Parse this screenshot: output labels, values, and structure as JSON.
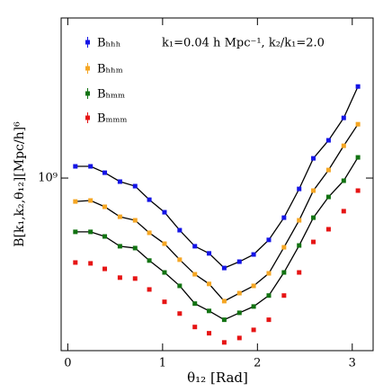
{
  "chart_data": {
    "type": "scatter",
    "log_y": true,
    "xlabel": "θ₁₂ [Rad]",
    "ylabel": "B[k₁,k₂,θ₁₂][Mpc/h]⁶",
    "annotation": "k₁=0.04 h Mpc⁻¹, k₂/k₁=2.0",
    "legend": "upper left",
    "xlim": [
      -0.07,
      3.22
    ],
    "xticks": [
      0,
      1,
      2,
      3
    ],
    "ylim": [
      374000000,
      2490000000
    ],
    "yticks": [
      {
        "value": 1000000000,
        "label": "10⁹"
      }
    ],
    "x": [
      0.08,
      0.24,
      0.39,
      0.55,
      0.71,
      0.86,
      1.02,
      1.18,
      1.34,
      1.49,
      1.65,
      1.81,
      1.96,
      2.12,
      2.28,
      2.44,
      2.59,
      2.75,
      2.91,
      3.06
    ],
    "series": [
      {
        "name": "Bₕₕₕ",
        "color": "#1414e6",
        "model_line": true,
        "values": [
          1069000000,
          1069000000,
          1031000000,
          980000000,
          955000000,
          884000000,
          823000000,
          743000000,
          678000000,
          651000000,
          599000000,
          621000000,
          647000000,
          703000000,
          798000000,
          940000000,
          1119000000,
          1240000000,
          1409000000,
          1685000000
        ]
      },
      {
        "name": "Bₕₕₘ",
        "color": "#f5a623",
        "model_line": true,
        "values": [
          875000000,
          880000000,
          849000000,
          802000000,
          786000000,
          732000000,
          688000000,
          628000000,
          578000000,
          547000000,
          496000000,
          519000000,
          541000000,
          581000000,
          674000000,
          786000000,
          931000000,
          1047000000,
          1202000000,
          1359000000
        ]
      },
      {
        "name": "Bₕₘₘ",
        "color": "#127312",
        "model_line": true,
        "values": [
          736000000,
          736000000,
          717000000,
          678000000,
          671000000,
          625000000,
          584000000,
          541000000,
          489000000,
          469000000,
          446000000,
          464000000,
          481000000,
          512000000,
          584000000,
          681000000,
          798000000,
          898000000,
          985000000,
          1125000000
        ]
      },
      {
        "name": "Bₘₘₘ",
        "color": "#e61414",
        "model_line": false,
        "values": [
          618000000,
          615000000,
          596000000,
          567000000,
          564000000,
          530000000,
          494000000,
          462000000,
          428000000,
          413000000,
          392000000,
          402000000,
          421000000,
          446000000,
          512000000,
          584000000,
          695000000,
          747000000,
          828000000,
          931000000
        ]
      }
    ]
  }
}
